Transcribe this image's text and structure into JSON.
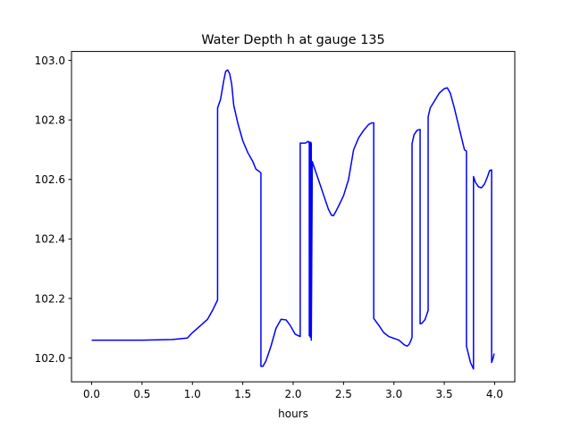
{
  "chart_data": {
    "type": "line",
    "title": "Water Depth h at gauge 135",
    "xlabel": "hours",
    "ylabel": "",
    "xlim": [
      -0.2,
      4.2
    ],
    "ylim": [
      101.92,
      103.03
    ],
    "x_ticks": [
      0.0,
      0.5,
      1.0,
      1.5,
      2.0,
      2.5,
      3.0,
      3.5,
      4.0
    ],
    "x_tick_labels": [
      "0.0",
      "0.5",
      "1.0",
      "1.5",
      "2.0",
      "2.5",
      "3.0",
      "3.5",
      "4.0"
    ],
    "y_ticks": [
      102.0,
      102.2,
      102.4,
      102.6,
      102.8,
      103.0
    ],
    "y_tick_labels": [
      "102.0",
      "102.2",
      "102.4",
      "102.6",
      "102.8",
      "103.0"
    ],
    "grid": false,
    "legend": "none",
    "series": [
      {
        "color": "#0000ff",
        "x": [
          0.0,
          0.5,
          0.8,
          0.95,
          1.0,
          1.05,
          1.1,
          1.15,
          1.2,
          1.25,
          1.25,
          1.28,
          1.31,
          1.33,
          1.35,
          1.37,
          1.39,
          1.41,
          1.45,
          1.5,
          1.55,
          1.6,
          1.63,
          1.67,
          1.68,
          1.68,
          1.7,
          1.73,
          1.78,
          1.83,
          1.88,
          1.93,
          1.97,
          2.02,
          2.07,
          2.07,
          2.12,
          2.15,
          2.16,
          2.16,
          2.165,
          2.165,
          2.17,
          2.17,
          2.175,
          2.175,
          2.18,
          2.18,
          2.19,
          2.2,
          2.25,
          2.3,
          2.35,
          2.38,
          2.4,
          2.42,
          2.45,
          2.5,
          2.55,
          2.6,
          2.65,
          2.7,
          2.75,
          2.78,
          2.8,
          2.8,
          2.85,
          2.9,
          2.95,
          3.0,
          3.05,
          3.1,
          3.13,
          3.15,
          3.17,
          3.18,
          3.18,
          3.2,
          3.23,
          3.26,
          3.26,
          3.28,
          3.31,
          3.34,
          3.34,
          3.36,
          3.4,
          3.45,
          3.5,
          3.53,
          3.56,
          3.6,
          3.65,
          3.7,
          3.72,
          3.72,
          3.76,
          3.79,
          3.79,
          3.81,
          3.84,
          3.87,
          3.9,
          3.93,
          3.95,
          3.97,
          3.97,
          3.985,
          3.995
        ],
        "y": [
          102.06,
          102.06,
          102.062,
          102.067,
          102.085,
          102.1,
          102.115,
          102.13,
          102.16,
          102.195,
          102.84,
          102.87,
          102.93,
          102.963,
          102.968,
          102.955,
          102.92,
          102.85,
          102.79,
          102.73,
          102.69,
          102.66,
          102.635,
          102.625,
          102.622,
          101.972,
          101.972,
          101.99,
          102.04,
          102.1,
          102.13,
          102.128,
          102.11,
          102.08,
          102.072,
          102.722,
          102.722,
          102.728,
          102.722,
          102.075,
          102.075,
          102.725,
          102.72,
          102.07,
          102.07,
          102.725,
          102.72,
          102.06,
          102.66,
          102.65,
          102.6,
          102.55,
          102.5,
          102.48,
          102.478,
          102.49,
          102.51,
          102.545,
          102.6,
          102.7,
          102.74,
          102.765,
          102.785,
          102.79,
          102.79,
          102.133,
          102.11,
          102.085,
          102.072,
          102.066,
          102.06,
          102.045,
          102.04,
          102.045,
          102.06,
          102.07,
          102.72,
          102.75,
          102.765,
          102.768,
          102.115,
          102.117,
          102.13,
          102.16,
          102.81,
          102.84,
          102.862,
          102.89,
          102.905,
          102.908,
          102.89,
          102.84,
          102.77,
          102.7,
          102.695,
          102.04,
          101.985,
          101.963,
          102.61,
          102.59,
          102.575,
          102.572,
          102.585,
          102.61,
          102.63,
          102.632,
          101.985,
          102.0,
          102.015
        ]
      }
    ]
  }
}
